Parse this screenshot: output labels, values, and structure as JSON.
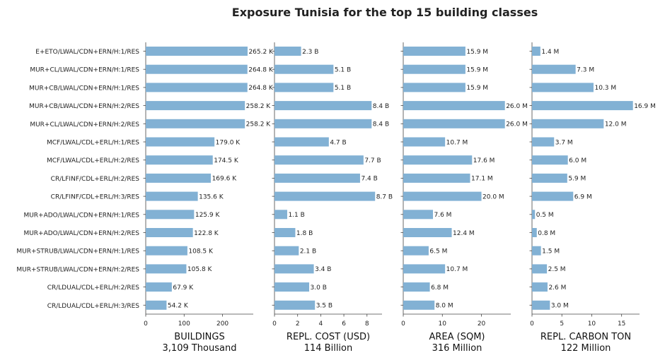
{
  "title": "Exposure Tunisia for the top 15 building classes",
  "bar_color": "#82b1d4",
  "chart_data": {
    "type": "bar",
    "orientation": "horizontal",
    "title": "Exposure Tunisia for the top 15 building classes",
    "categories": [
      "E+ETO/LWAL/CDN+ERN/H:1/RES",
      "MUR+CL/LWAL/CDN+ERN/H:1/RES",
      "MUR+CB/LWAL/CDN+ERN/H:1/RES",
      "MUR+CB/LWAL/CDN+ERN/H:2/RES",
      "MUR+CL/LWAL/CDN+ERN/H:2/RES",
      "MCF/LWAL/CDL+ERL/H:1/RES",
      "MCF/LWAL/CDL+ERL/H:2/RES",
      "CR/LFINF/CDL+ERL/H:2/RES",
      "CR/LFINF/CDL+ERL/H:3/RES",
      "MUR+ADO/LWAL/CDN+ERN/H:1/RES",
      "MUR+ADO/LWAL/CDN+ERN/H:2/RES",
      "MUR+STRUB/LWAL/CDN+ERN/H:1/RES",
      "MUR+STRUB/LWAL/CDN+ERN/H:2/RES",
      "CR/LDUAL/CDL+ERL/H:2/RES",
      "CR/LDUAL/CDL+ERL/H:3/RES"
    ],
    "panels": [
      {
        "xlabel": "BUILDINGS",
        "total": "3,109 Thousand",
        "xlim": [
          0,
          280
        ],
        "ticks": [
          0,
          100,
          200
        ],
        "values": [
          265.2,
          264.8,
          264.8,
          258.2,
          258.2,
          179.0,
          174.5,
          169.6,
          135.6,
          125.9,
          122.8,
          108.5,
          105.8,
          67.9,
          54.2
        ],
        "labels": [
          "265.2 K",
          "264.8 K",
          "264.8 K",
          "258.2 K",
          "258.2 K",
          "179.0 K",
          "174.5 K",
          "169.6 K",
          "135.6 K",
          "125.9 K",
          "122.8 K",
          "108.5 K",
          "105.8 K",
          "67.9 K",
          "54.2 K"
        ]
      },
      {
        "xlabel": "REPL. COST (USD)",
        "total": "114 Billion",
        "xlim": [
          0,
          9.3
        ],
        "ticks": [
          0,
          2,
          4,
          6,
          8
        ],
        "values": [
          2.3,
          5.1,
          5.1,
          8.4,
          8.4,
          4.7,
          7.7,
          7.4,
          8.7,
          1.1,
          1.8,
          2.1,
          3.4,
          3.0,
          3.5
        ],
        "labels": [
          "2.3 B",
          "5.1 B",
          "5.1 B",
          "8.4 B",
          "8.4 B",
          "4.7 B",
          "7.7 B",
          "7.4 B",
          "8.7 B",
          "1.1 B",
          "1.8 B",
          "2.1 B",
          "3.4 B",
          "3.0 B",
          "3.5 B"
        ]
      },
      {
        "xlabel": "AREA (SQM)",
        "total": "316 Million",
        "xlim": [
          0,
          27.5
        ],
        "ticks": [
          0,
          10,
          20
        ],
        "values": [
          15.9,
          15.9,
          15.9,
          26.0,
          26.0,
          10.7,
          17.6,
          17.1,
          20.0,
          7.6,
          12.4,
          6.5,
          10.7,
          6.8,
          8.0
        ],
        "labels": [
          "15.9 M",
          "15.9 M",
          "15.9 M",
          "26.0 M",
          "26.0 M",
          "10.7 M",
          "17.6 M",
          "17.1 M",
          "20.0 M",
          "7.6 M",
          "12.4 M",
          "6.5 M",
          "10.7 M",
          "6.8 M",
          "8.0 M"
        ]
      },
      {
        "xlabel": "REPL. CARBON TON",
        "total": "122 Million",
        "xlim": [
          0,
          18.0
        ],
        "ticks": [
          0,
          5,
          10,
          15
        ],
        "values": [
          1.4,
          7.3,
          10.3,
          16.9,
          12.0,
          3.7,
          6.0,
          5.9,
          6.9,
          0.5,
          0.8,
          1.5,
          2.5,
          2.6,
          3.0
        ],
        "labels": [
          "1.4 M",
          "7.3 M",
          "10.3 M",
          "16.9 M",
          "12.0 M",
          "3.7 M",
          "6.0 M",
          "5.9 M",
          "6.9 M",
          "0.5 M",
          "0.8 M",
          "1.5 M",
          "2.5 M",
          "2.6 M",
          "3.0 M"
        ]
      }
    ]
  }
}
